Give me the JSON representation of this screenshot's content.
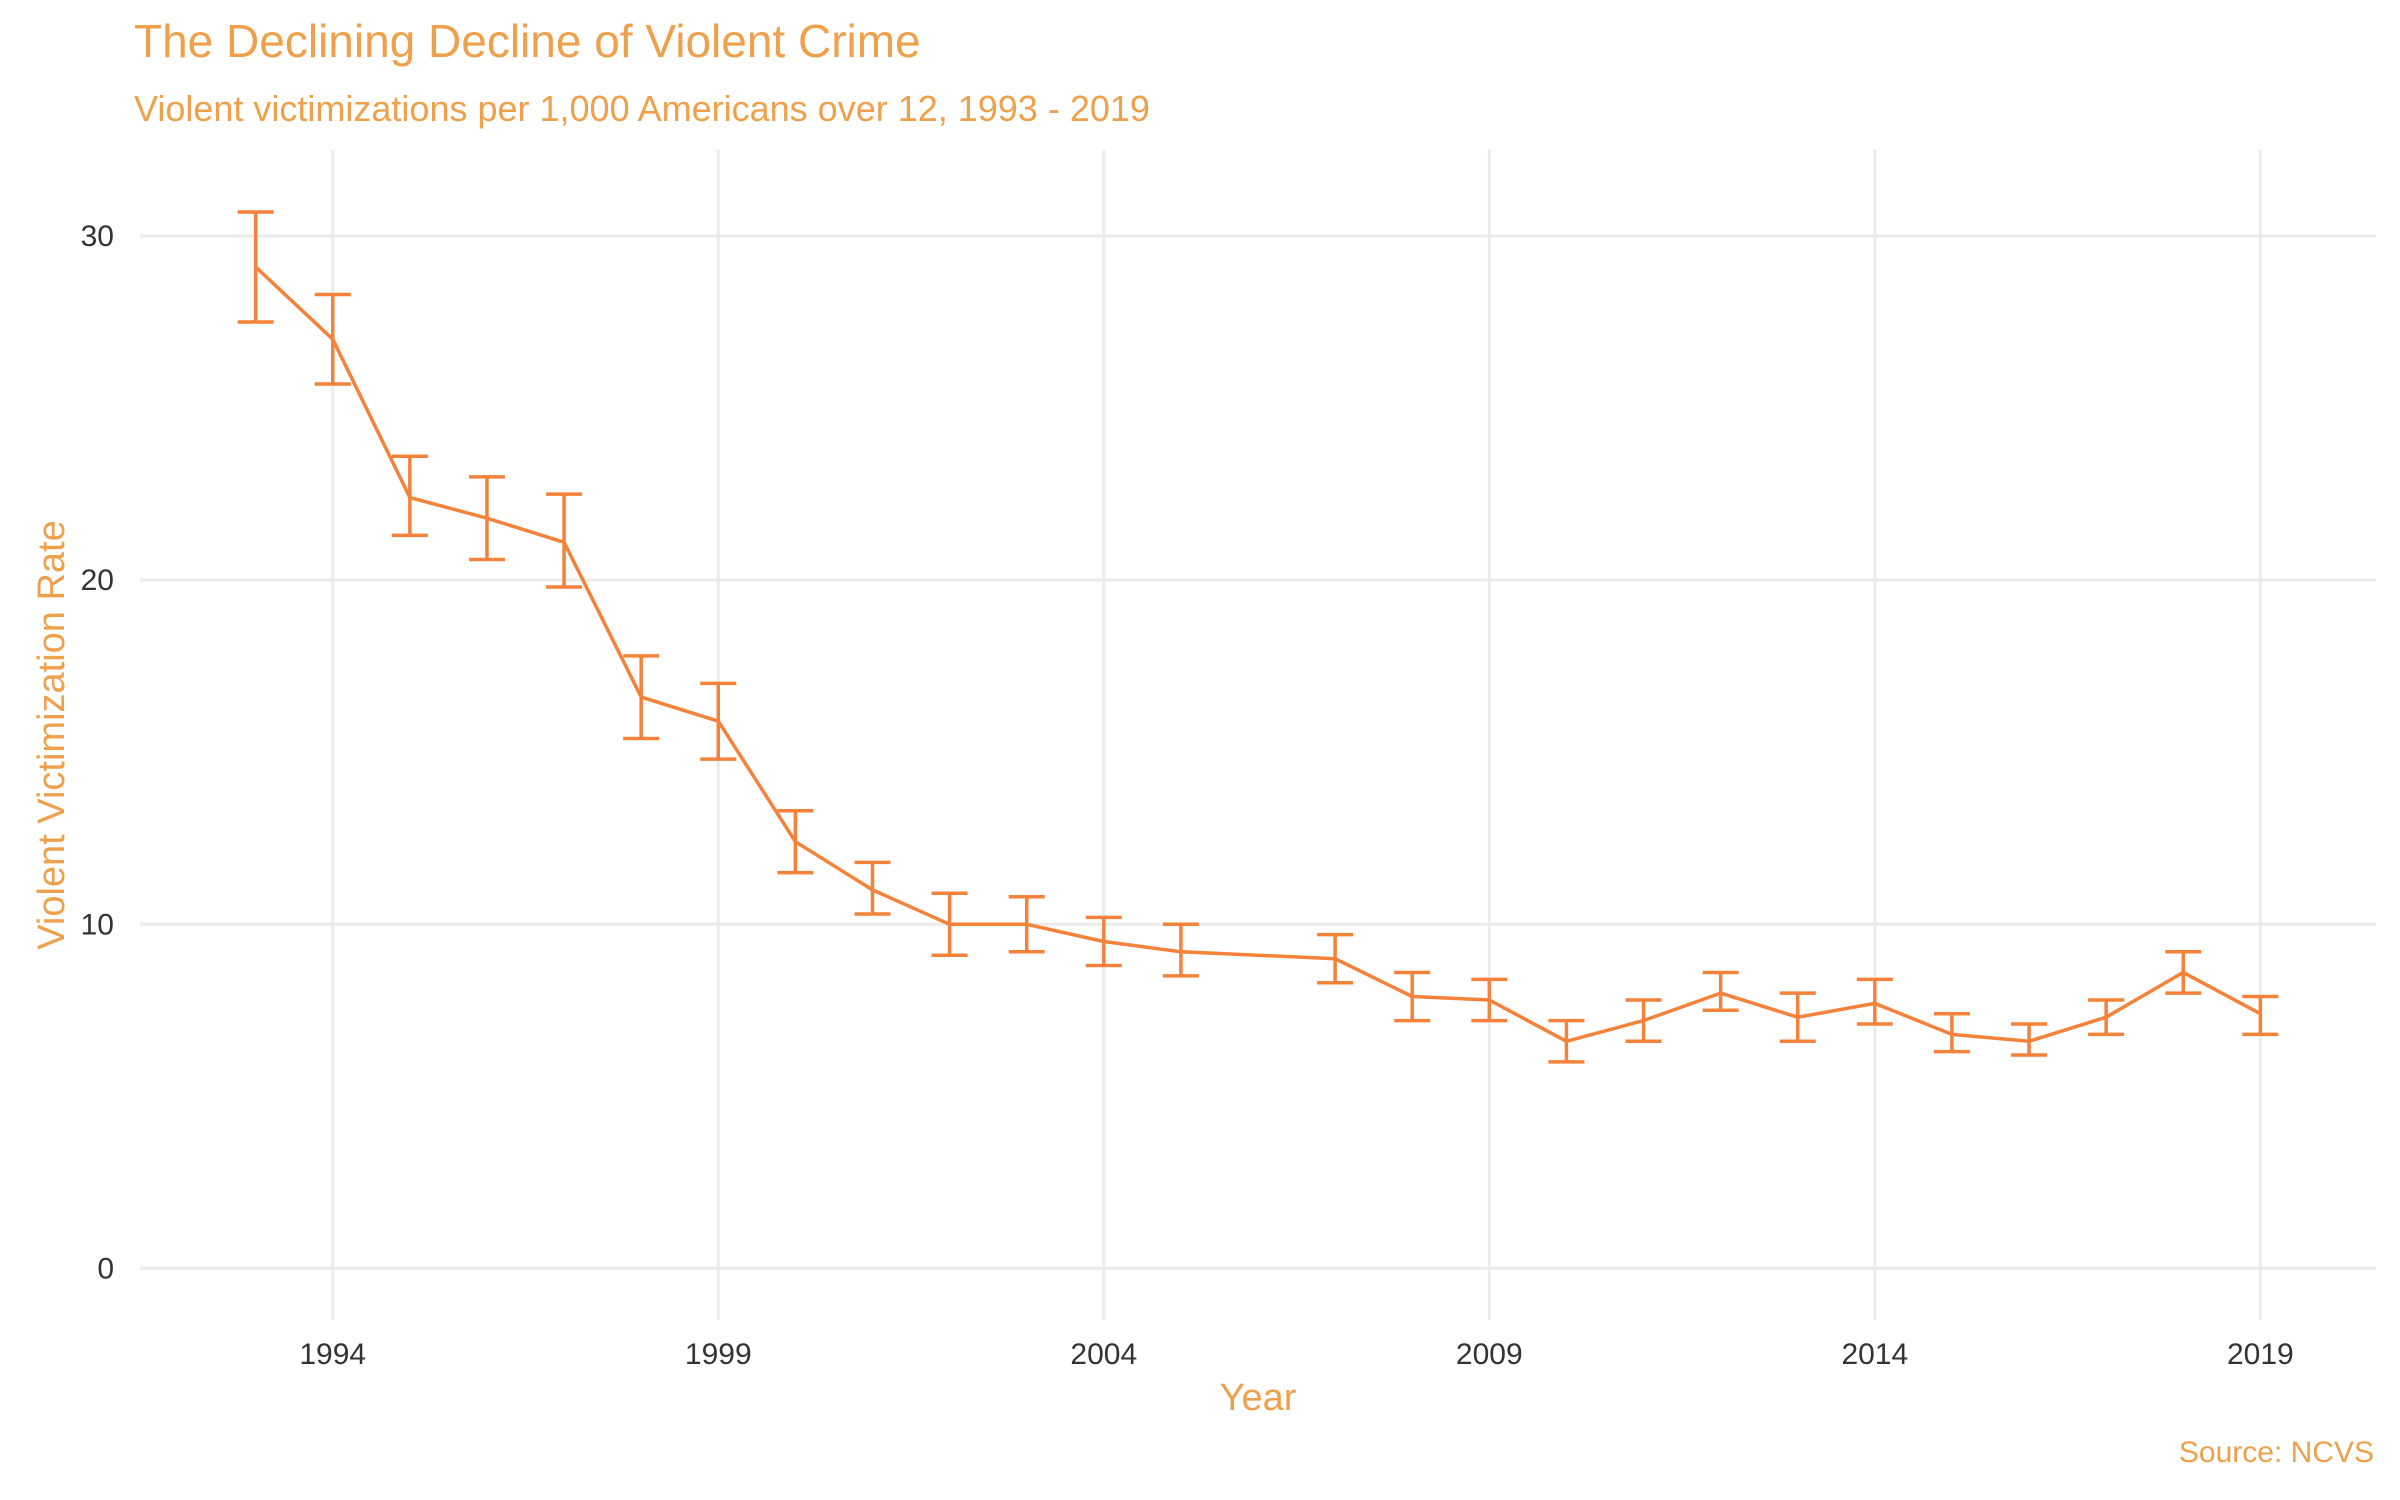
{
  "title": "The Declining Decline of Violent Crime",
  "subtitle": "Violent victimizations per 1,000 Americans over 12, 1993 - 2019",
  "caption": "Source: NCVS",
  "colors": {
    "line": "#F4823A",
    "text_accent": "#EEA04B",
    "grid": "#EBEBEB",
    "tick_text": "#333333"
  },
  "chart_data": {
    "type": "line",
    "title": "The Declining Decline of Violent Crime",
    "subtitle": "Violent victimizations per 1,000 Americans over 12, 1993 - 2019",
    "xlabel": "Year",
    "ylabel": "Violent Victimization Rate",
    "x_ticks": [
      "1994",
      "1999",
      "2004",
      "2009",
      "2014",
      "2019"
    ],
    "y_ticks": [
      "0",
      "10",
      "20",
      "30"
    ],
    "xlim": [
      1991.5,
      2020.5
    ],
    "ylim": [
      -1.5,
      32.5
    ],
    "grid": true,
    "error_bars": true,
    "points": [
      {
        "x": 1993,
        "y": 29.1,
        "low": 27.5,
        "high": 30.7
      },
      {
        "x": 1994,
        "y": 27.0,
        "low": 25.7,
        "high": 28.3
      },
      {
        "x": 1995,
        "y": 22.4,
        "low": 21.3,
        "high": 23.6
      },
      {
        "x": 1996,
        "y": 21.8,
        "low": 20.6,
        "high": 23.0
      },
      {
        "x": 1997,
        "y": 21.1,
        "low": 19.8,
        "high": 22.5
      },
      {
        "x": 1998,
        "y": 16.6,
        "low": 15.4,
        "high": 17.8
      },
      {
        "x": 1999,
        "y": 15.9,
        "low": 14.8,
        "high": 17.0
      },
      {
        "x": 2000,
        "y": 12.4,
        "low": 11.5,
        "high": 13.3
      },
      {
        "x": 2001,
        "y": 11.0,
        "low": 10.3,
        "high": 11.8
      },
      {
        "x": 2002,
        "y": 10.0,
        "low": 9.1,
        "high": 10.9
      },
      {
        "x": 2003,
        "y": 10.0,
        "low": 9.2,
        "high": 10.8
      },
      {
        "x": 2004,
        "y": 9.5,
        "low": 8.8,
        "high": 10.2
      },
      {
        "x": 2005,
        "y": 9.2,
        "low": 8.5,
        "high": 10.0
      },
      {
        "x": 2007,
        "y": 9.0,
        "low": 8.3,
        "high": 9.7
      },
      {
        "x": 2008,
        "y": 7.9,
        "low": 7.2,
        "high": 8.6
      },
      {
        "x": 2009,
        "y": 7.8,
        "low": 7.2,
        "high": 8.4
      },
      {
        "x": 2010,
        "y": 6.6,
        "low": 6.0,
        "high": 7.2
      },
      {
        "x": 2011,
        "y": 7.2,
        "low": 6.6,
        "high": 7.8
      },
      {
        "x": 2012,
        "y": 8.0,
        "low": 7.5,
        "high": 8.6
      },
      {
        "x": 2013,
        "y": 7.3,
        "low": 6.6,
        "high": 8.0
      },
      {
        "x": 2014,
        "y": 7.7,
        "low": 7.1,
        "high": 8.4
      },
      {
        "x": 2015,
        "y": 6.8,
        "low": 6.3,
        "high": 7.4
      },
      {
        "x": 2016,
        "y": 6.6,
        "low": 6.2,
        "high": 7.1
      },
      {
        "x": 2017,
        "y": 7.3,
        "low": 6.8,
        "high": 7.8
      },
      {
        "x": 2018,
        "y": 8.6,
        "low": 8.0,
        "high": 9.2
      },
      {
        "x": 2019,
        "y": 7.4,
        "low": 6.8,
        "high": 7.9
      }
    ]
  }
}
